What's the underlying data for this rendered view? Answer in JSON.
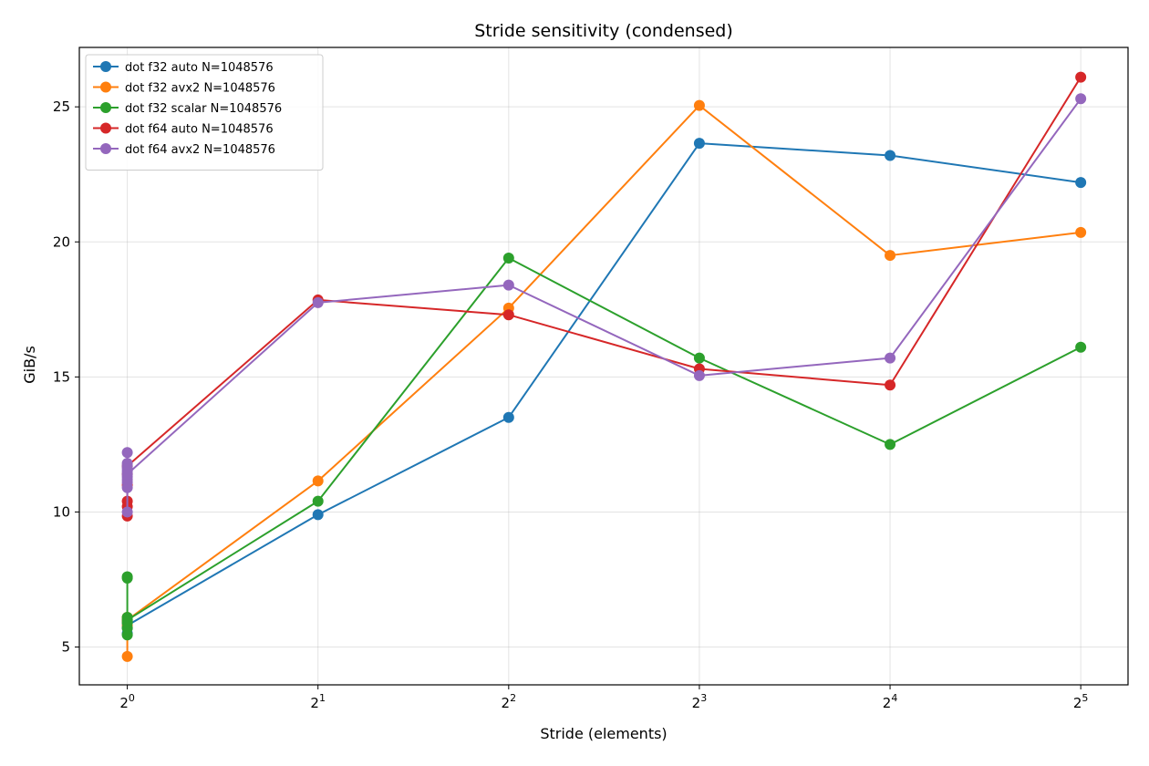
{
  "chart_data": {
    "type": "line",
    "title": "Stride sensitivity (condensed)",
    "xlabel": "Stride (elements)",
    "ylabel": "GiB/s",
    "x_scale": "log2",
    "x_ticks": [
      {
        "value": 1,
        "base": "2",
        "exp": "0"
      },
      {
        "value": 2,
        "base": "2",
        "exp": "1"
      },
      {
        "value": 4,
        "base": "2",
        "exp": "2"
      },
      {
        "value": 8,
        "base": "2",
        "exp": "3"
      },
      {
        "value": 16,
        "base": "2",
        "exp": "4"
      },
      {
        "value": 32,
        "base": "2",
        "exp": "5"
      }
    ],
    "xlim": [
      0.84,
      38
    ],
    "y_ticks": [
      5,
      10,
      15,
      20,
      25
    ],
    "ylim": [
      3.6,
      27.2
    ],
    "grid": true,
    "legend_position": "top-left",
    "series": [
      {
        "name": "dot f32 auto N=1048576",
        "color": "#1f77b4",
        "x": [
          1,
          1,
          1,
          1,
          1,
          2,
          4,
          8,
          16,
          32
        ],
        "y": [
          5.5,
          5.7,
          5.9,
          6.0,
          5.8,
          9.9,
          13.5,
          23.65,
          23.2,
          22.2
        ]
      },
      {
        "name": "dot f32 avx2 N=1048576",
        "color": "#ff7f0e",
        "x": [
          1,
          1,
          1,
          1,
          1,
          2,
          4,
          8,
          16,
          32
        ],
        "y": [
          4.65,
          5.8,
          5.95,
          6.1,
          6.0,
          11.15,
          17.55,
          25.05,
          19.5,
          20.35
        ]
      },
      {
        "name": "dot f32 scalar N=1048576",
        "color": "#2ca02c",
        "x": [
          1,
          1,
          1,
          1,
          1,
          1,
          1,
          2,
          4,
          8,
          16,
          32
        ],
        "y": [
          7.6,
          7.55,
          5.45,
          5.7,
          6.1,
          5.9,
          6.0,
          10.4,
          19.4,
          15.7,
          12.5,
          16.1
        ]
      },
      {
        "name": "dot f64 auto N=1048576",
        "color": "#d62728",
        "x": [
          1,
          1,
          1,
          1,
          1,
          1,
          2,
          4,
          8,
          16,
          32
        ],
        "y": [
          9.85,
          10.2,
          10.4,
          11.0,
          11.4,
          11.7,
          17.85,
          17.3,
          15.3,
          14.7,
          26.1
        ]
      },
      {
        "name": "dot f64 avx2 N=1048576",
        "color": "#9467bd",
        "x": [
          1,
          1,
          1,
          1,
          1,
          1,
          1,
          1,
          1,
          1,
          1,
          2,
          4,
          8,
          16,
          32
        ],
        "y": [
          10.0,
          10.9,
          11.1,
          11.3,
          11.5,
          11.7,
          11.8,
          12.2,
          11.6,
          11.2,
          11.4,
          17.75,
          18.4,
          15.05,
          15.7,
          25.3
        ]
      }
    ]
  }
}
